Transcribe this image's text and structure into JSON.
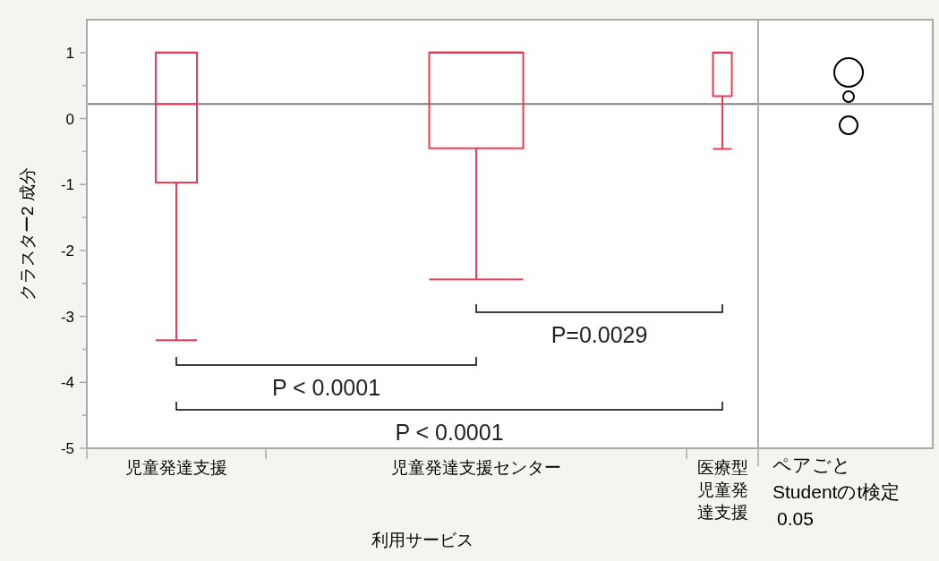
{
  "chart_data": {
    "type": "box",
    "xlabel": "利用サービス",
    "ylabel": "クラスター2 成分",
    "categories": [
      "児童発達支援",
      "児童発達支援センター",
      "医療型児童発達支援"
    ],
    "boxes": [
      {
        "low": -3.36,
        "q1": -0.97,
        "median": 0.22,
        "q3": 1.0,
        "high": 1.0
      },
      {
        "low": -2.44,
        "q1": -0.45,
        "median": 1.0,
        "q3": 1.0,
        "high": 1.0
      },
      {
        "low": -0.46,
        "q1": 0.34,
        "median": 1.0,
        "q3": 1.0,
        "high": 1.0
      }
    ],
    "color": "#ee3a55",
    "ylim": [
      -5,
      1.5
    ],
    "yticks": [
      -5,
      {
        "value": -4.5,
        "label": null
      },
      -4,
      {
        "value": -3.5,
        "label": null
      },
      -3,
      {
        "value": -2.5,
        "label": null
      },
      -2,
      {
        "value": -1.5,
        "label": null
      },
      -1,
      {
        "value": -0.5,
        "label": null
      },
      0,
      {
        "value": 0.5,
        "label": null
      },
      1
    ],
    "ref_lines": [
      {
        "axis": "y",
        "value": 0.22,
        "color": "#808080"
      }
    ],
    "annotations": [
      "P=0.0029",
      "P < 0.0001",
      "P < 0.0001",
      "ペアごと",
      "Studentのt検定",
      "0.05"
    ]
  }
}
